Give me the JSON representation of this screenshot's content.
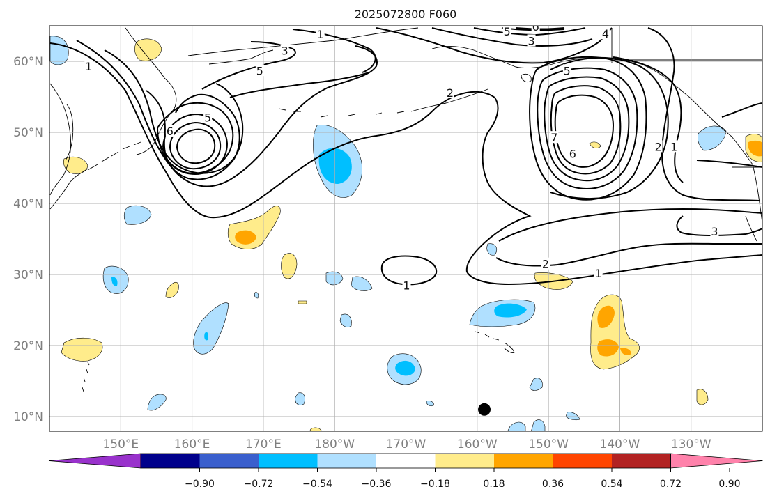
{
  "title": "2025072800 F060",
  "map": {
    "lon_ticks": [
      "150°E",
      "160°E",
      "170°E",
      "180°W",
      "170°W",
      "160°W",
      "150°W",
      "140°W",
      "130°W"
    ],
    "lat_ticks": [
      "60°N",
      "50°N",
      "40°N",
      "30°N",
      "20°N",
      "10°N"
    ],
    "grid": true,
    "marker": {
      "lon": -159,
      "lat": 11
    }
  },
  "colorbar": {
    "ticks": [
      "−0.90",
      "−0.72",
      "−0.54",
      "−0.36",
      "−0.18",
      "0.18",
      "0.36",
      "0.54",
      "0.72",
      "0.90"
    ],
    "colors": [
      "#9932cc",
      "#00008b",
      "#3a5fcd",
      "#00bfff",
      "#b0e0ff",
      "#ffffff",
      "#ffec8b",
      "#ffa500",
      "#ff4500",
      "#b22222",
      "#ff82ab"
    ]
  },
  "contour_labels": [
    {
      "text": "1",
      "lon": 178.0,
      "lat": 63.8
    },
    {
      "text": "3",
      "lon": 173.0,
      "lat": 61.5
    },
    {
      "text": "5",
      "lon": 169.5,
      "lat": 58.7
    },
    {
      "text": "1",
      "lon": 145.5,
      "lat": 59.3
    },
    {
      "text": "5",
      "lon": 162.2,
      "lat": 52.1
    },
    {
      "text": "6",
      "lon": 156.9,
      "lat": 50.2
    },
    {
      "text": "2",
      "lon": -163.8,
      "lat": 55.6
    },
    {
      "text": "5",
      "lon": -155.8,
      "lat": 64.2
    },
    {
      "text": "6",
      "lon": -151.8,
      "lat": 64.9
    },
    {
      "text": "3",
      "lon": -152.4,
      "lat": 62.9
    },
    {
      "text": "4",
      "lon": -142.0,
      "lat": 63.9
    },
    {
      "text": "5",
      "lon": -147.4,
      "lat": 58.7
    },
    {
      "text": "7",
      "lon": -149.2,
      "lat": 49.3
    },
    {
      "text": "6",
      "lon": -146.6,
      "lat": 47.0
    },
    {
      "text": "2",
      "lon": -134.6,
      "lat": 48.0
    },
    {
      "text": "1",
      "lon": -132.4,
      "lat": 48.0
    },
    {
      "text": "2",
      "lon": -150.4,
      "lat": 31.5
    },
    {
      "text": "1",
      "lon": -143.0,
      "lat": 30.2
    },
    {
      "text": "3",
      "lon": -126.7,
      "lat": 36.1
    },
    {
      "text": "1",
      "lon": -169.9,
      "lat": 28.5
    }
  ]
}
